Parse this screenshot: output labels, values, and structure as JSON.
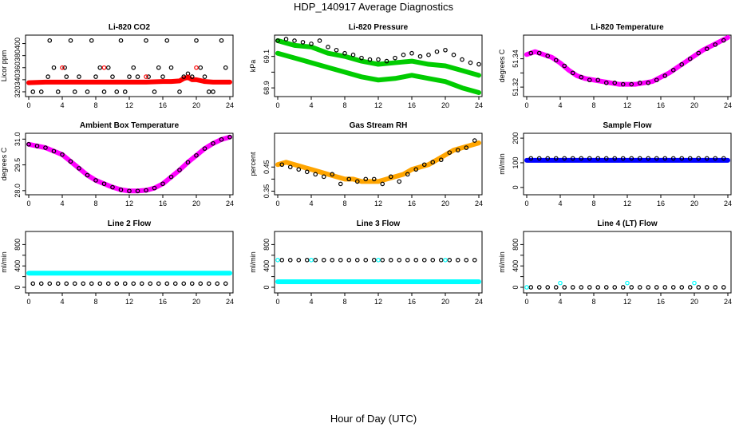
{
  "figure": {
    "title": "HDP_140917  Average Diagnostics",
    "xlabel": "Hour of Day (UTC)"
  },
  "colors": {
    "black": "#000000",
    "red": "#ff0000",
    "green": "#00cc00",
    "magenta": "#ff00ff",
    "orange": "#ffa500",
    "blue": "#0000ff",
    "cyan": "#00ffff"
  },
  "chart_data": [
    {
      "type": "scatter",
      "title": "Li-820 CO2",
      "ylabel": "Licor ppm",
      "xlim": [
        0,
        24
      ],
      "ylim": [
        316,
        410
      ],
      "xticks": [
        0,
        4,
        8,
        12,
        16,
        20,
        24
      ],
      "yticks": [
        320,
        340,
        360,
        380,
        400
      ],
      "series": [
        {
          "color": "red",
          "style": "band",
          "x": [
            0,
            2,
            4,
            6,
            8,
            10,
            12,
            14,
            16,
            17,
            18,
            18.5,
            19,
            19.5,
            20,
            21,
            22,
            24
          ],
          "y": [
            335,
            336,
            336,
            336,
            336,
            336,
            336,
            336,
            337,
            337,
            338,
            342,
            344,
            340,
            340,
            337,
            336,
            336
          ]
        },
        {
          "color": "black",
          "style": "points",
          "x": [
            0.5,
            1.5,
            2.3,
            2.5,
            3,
            3.5,
            4.3,
            4.5,
            5,
            5.5,
            6,
            7,
            7.5,
            8,
            8.5,
            9,
            9.5,
            10,
            10.5,
            11,
            11.5,
            12,
            12.5,
            13,
            14,
            14.3,
            15,
            15.5,
            16,
            16.5,
            17,
            18,
            18.5,
            19,
            19.5,
            20,
            20.5,
            21,
            21.5,
            22,
            23,
            23.5
          ],
          "y": [
            320,
            320,
            345,
            405,
            360,
            320,
            360,
            345,
            405,
            320,
            345,
            320,
            405,
            345,
            360,
            320,
            360,
            345,
            320,
            405,
            320,
            345,
            360,
            345,
            405,
            345,
            320,
            360,
            345,
            405,
            360,
            320,
            345,
            350,
            345,
            405,
            360,
            345,
            320,
            320,
            405,
            360
          ]
        },
        {
          "color": "red",
          "style": "points",
          "x": [
            4,
            9,
            14,
            19,
            20
          ],
          "y": [
            360,
            360,
            345,
            345,
            360
          ]
        }
      ]
    },
    {
      "type": "scatter",
      "title": "Li-820 Pressure",
      "ylabel": "kPa",
      "xlim": [
        0,
        24
      ],
      "ylim": [
        68.86,
        69.22
      ],
      "xticks": [
        0,
        4,
        8,
        12,
        16,
        20,
        24
      ],
      "yticks": [
        68.9,
        69.1
      ],
      "ytick_labels": [
        "68.9",
        "69.1"
      ],
      "extra_ytick": 69.0,
      "series": [
        {
          "color": "green",
          "style": "band",
          "x": [
            0,
            2,
            4,
            6,
            8,
            10,
            12,
            14,
            16,
            18,
            20,
            22,
            24
          ],
          "y": [
            69.2,
            69.17,
            69.16,
            69.12,
            69.1,
            69.07,
            69.05,
            69.06,
            69.07,
            69.05,
            69.04,
            69.01,
            68.98
          ]
        },
        {
          "color": "green",
          "style": "band",
          "x": [
            0,
            2,
            4,
            6,
            8,
            10,
            12,
            14,
            16,
            18,
            20,
            22,
            24
          ],
          "y": [
            69.12,
            69.09,
            69.06,
            69.03,
            69.0,
            68.97,
            68.95,
            68.96,
            68.98,
            68.96,
            68.94,
            68.9,
            68.87
          ]
        },
        {
          "color": "black",
          "style": "points",
          "x": [
            0,
            1,
            2,
            3,
            4,
            5,
            6,
            7,
            8,
            9,
            10,
            11,
            12,
            13,
            14,
            15,
            16,
            17,
            18,
            19,
            20,
            21,
            22,
            23,
            24
          ],
          "y": [
            69.2,
            69.21,
            69.2,
            69.19,
            69.18,
            69.2,
            69.16,
            69.14,
            69.12,
            69.11,
            69.09,
            69.08,
            69.08,
            69.07,
            69.09,
            69.11,
            69.12,
            69.1,
            69.11,
            69.13,
            69.14,
            69.11,
            69.08,
            69.06,
            69.05
          ]
        }
      ]
    },
    {
      "type": "scatter",
      "title": "Li-820 Temperature",
      "ylabel": "degrees C",
      "xlim": [
        0,
        24
      ],
      "ylim": [
        51.315,
        51.355
      ],
      "xticks": [
        0,
        4,
        8,
        12,
        16,
        20,
        24
      ],
      "yticks": [
        51.32,
        51.34
      ],
      "ytick_labels": [
        "51.32",
        "51.34"
      ],
      "extra_ytick": 51.33,
      "series": [
        {
          "color": "magenta",
          "style": "band",
          "x": [
            0,
            1,
            2,
            3,
            4,
            5,
            6,
            7,
            8,
            9,
            10,
            11,
            12,
            13,
            14,
            15,
            16,
            17,
            18,
            19,
            20,
            21,
            22,
            23,
            24
          ],
          "y": [
            51.343,
            51.345,
            51.343,
            51.341,
            51.337,
            51.332,
            51.328,
            51.326,
            51.325,
            51.324,
            51.323,
            51.322,
            51.322,
            51.322,
            51.323,
            51.324,
            51.327,
            51.33,
            51.334,
            51.338,
            51.342,
            51.346,
            51.349,
            51.352,
            51.355
          ]
        },
        {
          "color": "black",
          "style": "points",
          "x": [
            0.5,
            1.5,
            2.5,
            3.5,
            4.5,
            5.5,
            6.5,
            7.5,
            8.5,
            9.5,
            10.5,
            11.5,
            12.5,
            13.5,
            14.5,
            15.5,
            16.5,
            17.5,
            18.5,
            19.5,
            20.5,
            21.5,
            22.5,
            23.5
          ],
          "y": [
            51.344,
            51.344,
            51.342,
            51.339,
            51.335,
            51.33,
            51.327,
            51.325,
            51.325,
            51.323,
            51.323,
            51.322,
            51.322,
            51.323,
            51.323,
            51.325,
            51.328,
            51.332,
            51.336,
            51.34,
            51.344,
            51.347,
            51.35,
            51.353
          ]
        }
      ]
    },
    {
      "type": "scatter",
      "title": "Ambient Box Temperature",
      "ylabel": "degrees C",
      "xlim": [
        0,
        24
      ],
      "ylim": [
        27.9,
        31.2
      ],
      "xticks": [
        0,
        4,
        8,
        12,
        16,
        20,
        24
      ],
      "yticks": [
        28.0,
        29.5,
        31.0
      ],
      "ytick_labels": [
        "28.0",
        "29.5",
        "31.0"
      ],
      "series": [
        {
          "color": "magenta",
          "style": "band",
          "x": [
            0,
            1,
            2,
            3,
            4,
            5,
            6,
            7,
            8,
            9,
            10,
            11,
            12,
            13,
            14,
            15,
            16,
            17,
            18,
            19,
            20,
            21,
            22,
            23,
            24
          ],
          "y": [
            30.7,
            30.6,
            30.5,
            30.3,
            30.1,
            29.7,
            29.3,
            28.9,
            28.6,
            28.4,
            28.2,
            28.05,
            27.98,
            27.98,
            28.02,
            28.15,
            28.4,
            28.8,
            29.2,
            29.65,
            30.05,
            30.45,
            30.75,
            30.98,
            31.12
          ]
        },
        {
          "color": "black",
          "style": "points",
          "x": [
            0,
            1,
            2,
            3,
            4,
            5,
            6,
            7,
            8,
            9,
            10,
            11,
            12,
            13,
            14,
            15,
            16,
            17,
            18,
            19,
            20,
            21,
            22,
            23,
            24
          ],
          "y": [
            30.7,
            30.6,
            30.5,
            30.3,
            30.1,
            29.7,
            29.3,
            28.9,
            28.6,
            28.4,
            28.2,
            28.05,
            27.98,
            27.98,
            28.02,
            28.15,
            28.4,
            28.8,
            29.2,
            29.65,
            30.05,
            30.45,
            30.75,
            30.98,
            31.12
          ]
        }
      ]
    },
    {
      "type": "scatter",
      "title": "Gas Stream RH",
      "ylabel": "percent",
      "xlim": [
        0,
        24
      ],
      "ylim": [
        0.345,
        0.58
      ],
      "xticks": [
        0,
        4,
        8,
        12,
        16,
        20,
        24
      ],
      "yticks": [
        0.35,
        0.45
      ],
      "ytick_labels": [
        "0.35",
        "0.45"
      ],
      "extra_ytick": 0.4,
      "series": [
        {
          "color": "orange",
          "style": "band",
          "x": [
            0,
            1,
            2,
            3,
            4,
            5,
            6,
            7,
            8,
            9,
            10,
            11,
            12,
            13,
            14,
            15,
            16,
            17,
            18,
            19,
            20,
            21,
            22,
            23,
            24
          ],
          "y": [
            0.46,
            0.47,
            0.46,
            0.45,
            0.44,
            0.43,
            0.42,
            0.41,
            0.4,
            0.4,
            0.39,
            0.39,
            0.39,
            0.4,
            0.41,
            0.42,
            0.44,
            0.45,
            0.46,
            0.48,
            0.5,
            0.52,
            0.53,
            0.54,
            0.55
          ]
        },
        {
          "color": "black",
          "style": "points",
          "x": [
            0.5,
            1.5,
            2.5,
            3.5,
            4.5,
            5.5,
            6.5,
            7.5,
            8.5,
            9.5,
            10.5,
            11.5,
            12.5,
            13.5,
            14.5,
            15.5,
            16.5,
            17.5,
            18.5,
            19.5,
            20.5,
            21.5,
            22.5,
            23.5
          ],
          "y": [
            0.46,
            0.45,
            0.44,
            0.43,
            0.42,
            0.41,
            0.42,
            0.38,
            0.4,
            0.39,
            0.4,
            0.4,
            0.38,
            0.41,
            0.39,
            0.42,
            0.44,
            0.46,
            0.47,
            0.48,
            0.51,
            0.52,
            0.53,
            0.56
          ]
        }
      ]
    },
    {
      "type": "scatter",
      "title": "Sample Flow",
      "ylabel": "ml/min",
      "xlim": [
        0,
        24
      ],
      "ylim": [
        -20,
        210
      ],
      "xticks": [
        0,
        4,
        8,
        12,
        16,
        20,
        24
      ],
      "yticks": [
        0,
        100,
        200
      ],
      "series": [
        {
          "color": "blue",
          "style": "band",
          "x": [
            0,
            24
          ],
          "y": [
            110,
            110
          ]
        },
        {
          "color": "black",
          "style": "points",
          "x": [
            0.5,
            1.5,
            2.5,
            3.5,
            4.5,
            5.5,
            6.5,
            7.5,
            8.5,
            9.5,
            10.5,
            11.5,
            12.5,
            13.5,
            14.5,
            15.5,
            16.5,
            17.5,
            18.5,
            19.5,
            20.5,
            21.5,
            22.5,
            23.5
          ],
          "y": [
            118,
            118,
            118,
            118,
            118,
            118,
            118,
            118,
            118,
            118,
            118,
            118,
            118,
            118,
            118,
            118,
            118,
            118,
            118,
            118,
            118,
            118,
            118,
            118
          ]
        }
      ]
    },
    {
      "type": "scatter",
      "title": "Line 2 Flow",
      "ylabel": "ml/min",
      "xlim": [
        0,
        24
      ],
      "ylim": [
        -60,
        1000
      ],
      "xticks": [
        0,
        4,
        8,
        12,
        16,
        20,
        24
      ],
      "yticks": [
        0,
        400,
        800
      ],
      "extra_yticks": [
        200,
        600
      ],
      "series": [
        {
          "color": "cyan",
          "style": "band",
          "x": [
            0,
            24
          ],
          "y": [
            265,
            265
          ]
        },
        {
          "color": "black",
          "style": "points",
          "x": [
            0.5,
            1.5,
            2.5,
            3.5,
            4.5,
            5.5,
            6.5,
            7.5,
            8.5,
            9.5,
            10.5,
            11.5,
            12.5,
            13.5,
            14.5,
            15.5,
            16.5,
            17.5,
            18.5,
            19.5,
            20.5,
            21.5,
            22.5,
            23.5
          ],
          "y": [
            70,
            70,
            70,
            70,
            70,
            70,
            70,
            70,
            70,
            70,
            70,
            70,
            70,
            70,
            70,
            70,
            70,
            70,
            70,
            70,
            70,
            70,
            70,
            70
          ]
        }
      ]
    },
    {
      "type": "scatter",
      "title": "Line 3 Flow",
      "ylabel": "ml/min",
      "xlim": [
        0,
        24
      ],
      "ylim": [
        -60,
        1000
      ],
      "xticks": [
        0,
        4,
        8,
        12,
        16,
        20,
        24
      ],
      "yticks": [
        0,
        400,
        800
      ],
      "extra_yticks": [
        200,
        600
      ],
      "series": [
        {
          "color": "cyan",
          "style": "band",
          "x": [
            0,
            24
          ],
          "y": [
            105,
            105
          ]
        },
        {
          "color": "black",
          "style": "points",
          "x": [
            0.5,
            1.5,
            2.5,
            3.5,
            4.5,
            5.5,
            6.5,
            7.5,
            8.5,
            9.5,
            10.5,
            11.5,
            12.5,
            13.5,
            14.5,
            15.5,
            16.5,
            17.5,
            18.5,
            19.5,
            20.5,
            21.5,
            22.5,
            23.5
          ],
          "y": [
            510,
            510,
            510,
            510,
            510,
            510,
            510,
            510,
            510,
            510,
            510,
            510,
            510,
            510,
            510,
            510,
            510,
            510,
            510,
            510,
            510,
            510,
            510,
            510
          ]
        },
        {
          "color": "cyan",
          "style": "points",
          "x": [
            0,
            4,
            12,
            20
          ],
          "y": [
            510,
            510,
            510,
            510
          ]
        }
      ]
    },
    {
      "type": "scatter",
      "title": "Line 4 (LT) Flow",
      "ylabel": "ml/min",
      "xlim": [
        0,
        24
      ],
      "ylim": [
        -60,
        1000
      ],
      "xticks": [
        0,
        4,
        8,
        12,
        16,
        20,
        24
      ],
      "yticks": [
        0,
        400,
        800
      ],
      "extra_yticks": [
        200,
        600
      ],
      "series": [
        {
          "color": "black",
          "style": "points",
          "x": [
            0.5,
            1.5,
            2.5,
            3.5,
            4.5,
            5.5,
            6.5,
            7.5,
            8.5,
            9.5,
            10.5,
            11.5,
            12.5,
            13.5,
            14.5,
            15.5,
            16.5,
            17.5,
            18.5,
            19.5,
            20.5,
            21.5,
            22.5,
            23.5
          ],
          "y": [
            0,
            0,
            0,
            0,
            0,
            0,
            0,
            0,
            0,
            0,
            0,
            0,
            0,
            0,
            0,
            0,
            0,
            0,
            0,
            0,
            0,
            0,
            0,
            0
          ]
        },
        {
          "color": "cyan",
          "style": "points",
          "x": [
            0,
            4,
            12,
            20
          ],
          "y": [
            0,
            80,
            80,
            80
          ]
        }
      ]
    }
  ]
}
